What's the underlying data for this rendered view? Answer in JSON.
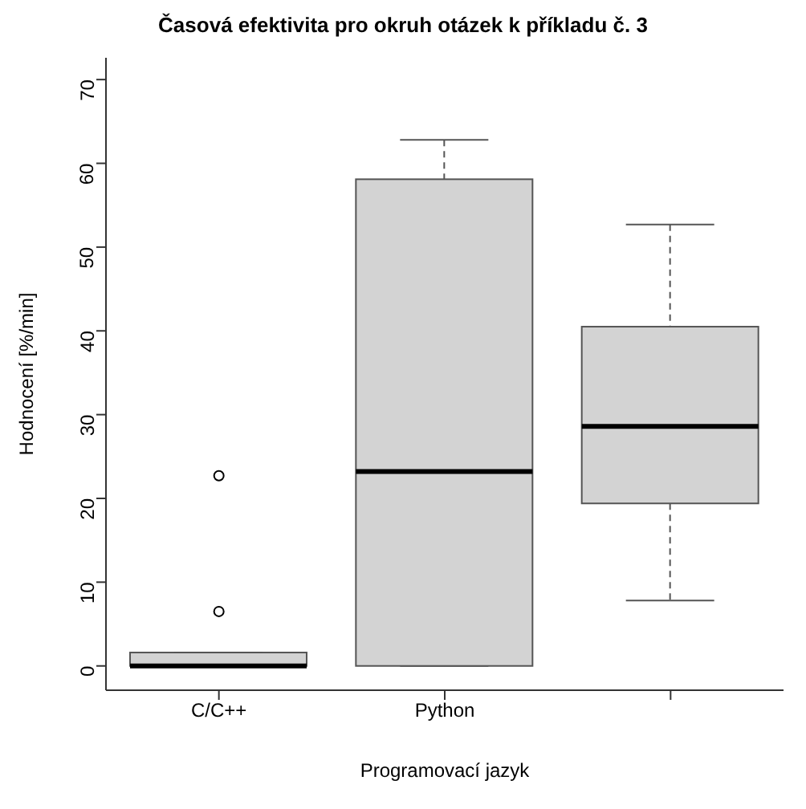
{
  "chart_data": {
    "type": "box",
    "title": "Časová efektivita pro okruh otázek k příkladu č. 3",
    "xlabel": "Programovací jazyk",
    "ylabel": "Hodnocení [%/min]",
    "categories": [
      "C/C++",
      "Python",
      null
    ],
    "boxes": [
      {
        "low": 0,
        "q1": 0,
        "median": 0,
        "q3": 1.6,
        "high": 1.6,
        "outliers": [
          22.7,
          6.5
        ]
      },
      {
        "low": 0,
        "q1": 0,
        "median": 23.2,
        "q3": 58.1,
        "high": 62.8
      },
      {
        "low": 7.8,
        "q1": 19.4,
        "median": 28.6,
        "q3": 40.5,
        "high": 52.7
      }
    ],
    "color": "#d3d3d3",
    "ylim": [
      -2.9,
      72.6
    ],
    "yticks": [
      0,
      10,
      20,
      30,
      40,
      50,
      60,
      70
    ],
    "grid": false,
    "legend": false
  }
}
